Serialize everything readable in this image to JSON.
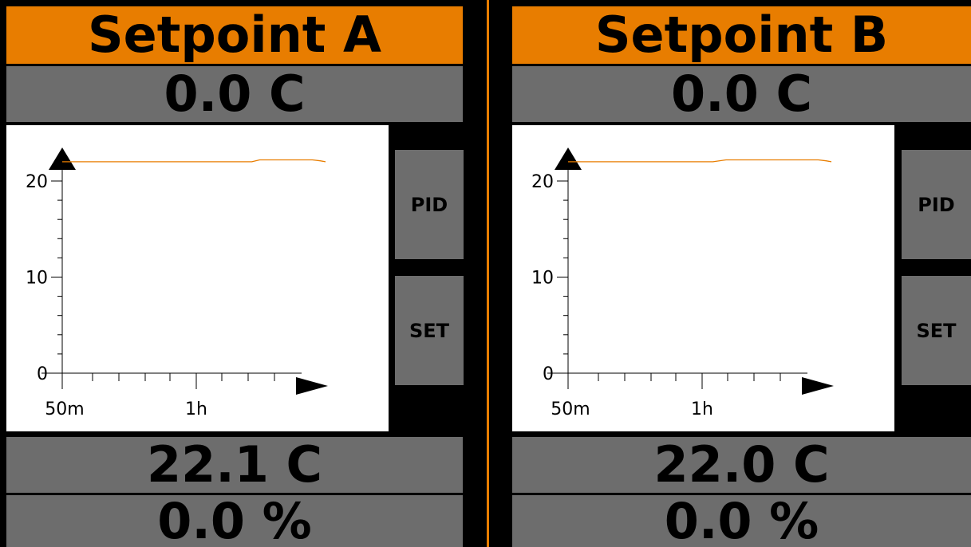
{
  "colors": {
    "accent": "#e87d00",
    "panel_gray": "#6d6d6d",
    "background": "#000000",
    "chart_bg": "#ffffff",
    "trace": "#e87d00"
  },
  "panels": [
    {
      "title": "Setpoint A",
      "setpoint": "0.0 C",
      "temperature": "22.1 C",
      "output": "0.0 %",
      "buttons": {
        "pid": "PID",
        "set": "SET"
      },
      "chart": {
        "y_ticks": [
          "0",
          "10",
          "20"
        ],
        "x_ticks": [
          "50m",
          "1h"
        ]
      }
    },
    {
      "title": "Setpoint B",
      "setpoint": "0.0 C",
      "temperature": "22.0 C",
      "output": "0.0 %",
      "buttons": {
        "pid": "PID",
        "set": "SET"
      },
      "chart": {
        "y_ticks": [
          "0",
          "10",
          "20"
        ],
        "x_ticks": [
          "50m",
          "1h"
        ]
      }
    }
  ],
  "chart_data": [
    {
      "type": "line",
      "title": "",
      "xlabel": "",
      "ylabel": "",
      "ylim": [
        0,
        22
      ],
      "y_ticks": [
        0,
        10,
        20
      ],
      "x_tick_labels": [
        "50m",
        "1h"
      ],
      "x": [
        0,
        0.1,
        0.2,
        0.3,
        0.4,
        0.5,
        0.6,
        0.7,
        0.72,
        0.75,
        0.8,
        0.85,
        0.9,
        0.95,
        0.98,
        1.0
      ],
      "y": [
        22.0,
        22.0,
        22.0,
        22.0,
        22.0,
        22.0,
        22.0,
        22.0,
        22.0,
        22.2,
        22.2,
        22.2,
        22.2,
        22.2,
        22.1,
        22.0
      ]
    },
    {
      "type": "line",
      "title": "",
      "xlabel": "",
      "ylabel": "",
      "ylim": [
        0,
        22
      ],
      "y_ticks": [
        0,
        10,
        20
      ],
      "x_tick_labels": [
        "50m",
        "1h"
      ],
      "x": [
        0,
        0.1,
        0.2,
        0.3,
        0.4,
        0.5,
        0.55,
        0.6,
        0.65,
        0.7,
        0.8,
        0.9,
        0.95,
        0.98,
        1.0
      ],
      "y": [
        22.0,
        22.0,
        22.0,
        22.0,
        22.0,
        22.0,
        22.0,
        22.2,
        22.2,
        22.2,
        22.2,
        22.2,
        22.2,
        22.1,
        22.0
      ]
    }
  ]
}
